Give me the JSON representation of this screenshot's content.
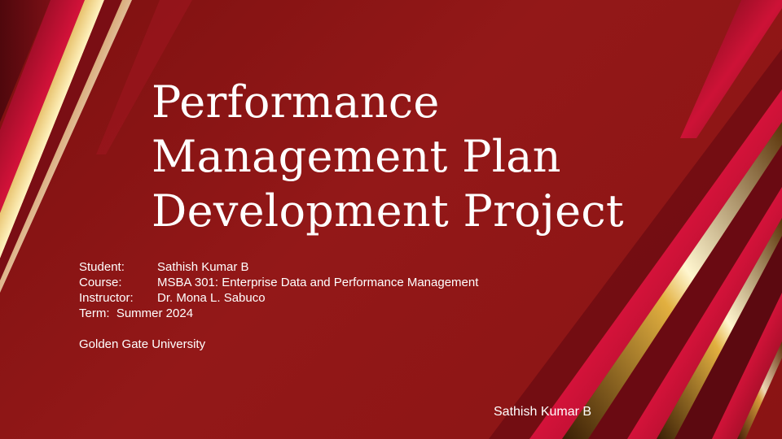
{
  "slide": {
    "title_lines": [
      "Performance",
      "Management Plan",
      "Development Project"
    ],
    "details": [
      {
        "label": "Student:",
        "value": "Sathish Kumar B"
      },
      {
        "label": "Course:",
        "value": "MSBA 301: Enterprise Data and Performance Management"
      },
      {
        "label": "Instructor:",
        "value": "Dr. Mona L. Sabuco"
      }
    ],
    "term": "Term:  Summer 2024",
    "university": "Golden Gate University",
    "footer_name": "Sathish Kumar B"
  },
  "colors": {
    "background": "#8e1616",
    "accent_red": "#c0102c",
    "accent_gold": "#e8b843",
    "text": "#ffffff"
  }
}
